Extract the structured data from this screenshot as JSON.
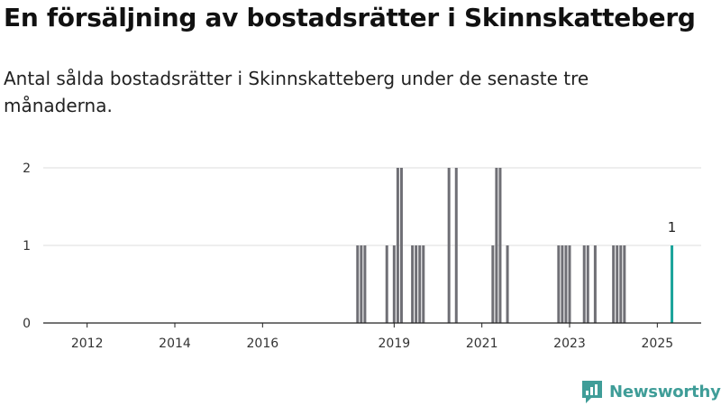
{
  "header": {
    "title": "En försäljning av bostadsrätter i Skinnskatteberg",
    "subtitle": "Antal sålda bostadsrätter i Skinnskatteberg under de senaste tre månaderna."
  },
  "brand": {
    "name": "Newsworthy",
    "color": "#3f9d98"
  },
  "chart_data": {
    "type": "bar",
    "title": "En försäljning av bostadsrätter i Skinnskatteberg",
    "subtitle": "Antal sålda bostadsrätter i Skinnskatteberg under de senaste tre månaderna.",
    "xlabel": "",
    "ylabel": "",
    "x_type": "date",
    "x_ticks": [
      "2012",
      "2014",
      "2016",
      "2019",
      "2021",
      "2023",
      "2025"
    ],
    "y_ticks": [
      0,
      1,
      2
    ],
    "ylim": [
      0,
      2
    ],
    "grid": true,
    "legend": "none",
    "colors": {
      "bars": "#6f6f75",
      "highlight": "#1aa39a",
      "grid": "#dddddd"
    },
    "series": [
      {
        "values": [
          {
            "date": "2018-03",
            "value": 1
          },
          {
            "date": "2018-04",
            "value": 1
          },
          {
            "date": "2018-05",
            "value": 1
          },
          {
            "date": "2018-11",
            "value": 1
          },
          {
            "date": "2019-01",
            "value": 1
          },
          {
            "date": "2019-02",
            "value": 2
          },
          {
            "date": "2019-03",
            "value": 2
          },
          {
            "date": "2019-06",
            "value": 1
          },
          {
            "date": "2019-07",
            "value": 1
          },
          {
            "date": "2019-08",
            "value": 1
          },
          {
            "date": "2019-09",
            "value": 1
          },
          {
            "date": "2020-04",
            "value": 2
          },
          {
            "date": "2020-06",
            "value": 2
          },
          {
            "date": "2021-04",
            "value": 1
          },
          {
            "date": "2021-05",
            "value": 2
          },
          {
            "date": "2021-06",
            "value": 2
          },
          {
            "date": "2021-08",
            "value": 1
          },
          {
            "date": "2022-10",
            "value": 1
          },
          {
            "date": "2022-11",
            "value": 1
          },
          {
            "date": "2022-12",
            "value": 1
          },
          {
            "date": "2023-01",
            "value": 1
          },
          {
            "date": "2023-05",
            "value": 1
          },
          {
            "date": "2023-06",
            "value": 1
          },
          {
            "date": "2023-08",
            "value": 1
          },
          {
            "date": "2024-01",
            "value": 1
          },
          {
            "date": "2024-02",
            "value": 1
          },
          {
            "date": "2024-03",
            "value": 1
          },
          {
            "date": "2024-04",
            "value": 1
          },
          {
            "date": "2025-05",
            "value": 1,
            "highlight": true,
            "label": "1"
          }
        ]
      }
    ]
  }
}
